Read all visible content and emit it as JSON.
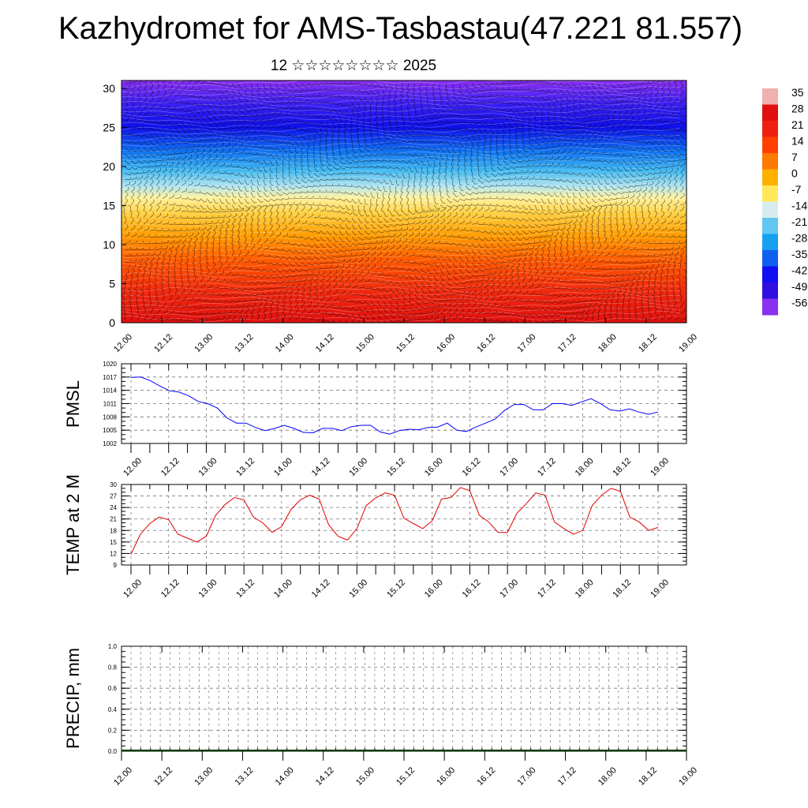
{
  "title": "Kazhydromet for AMS-Tasbastau(47.221 81.557)",
  "subtitle": "12 ☆☆☆☆☆☆☆☆ 2025",
  "chart_data": [
    {
      "type": "heatmap",
      "name": "temperature cross-section with wind barbs",
      "x_tick_labels": [
        "12.00",
        "12.12",
        "13.00",
        "13.12",
        "14.00",
        "14.12",
        "15.00",
        "15.12",
        "16.00",
        "16.12",
        "17.00",
        "17.12",
        "18.00",
        "18.12",
        "19.00"
      ],
      "y_ticks": [
        0,
        5,
        10,
        15,
        20,
        25,
        30
      ],
      "ylim": [
        0,
        31
      ],
      "colorbar_labels": [
        "35",
        "28",
        "21",
        "14",
        "7",
        "0",
        "-7",
        "-14",
        "-21",
        "-28",
        "-35",
        "-42",
        "-49",
        "-56"
      ],
      "colorbar_colors": [
        "#f0b0b0",
        "#e01010",
        "#f02010",
        "#ff4000",
        "#ff7a00",
        "#ffb000",
        "#ffe85a",
        "#d8ecf0",
        "#60c8f0",
        "#18a0f0",
        "#1060f0",
        "#1010f0",
        "#3010e0",
        "#8a30f0"
      ],
      "profile": [
        {
          "level": 0,
          "color": "#e01010"
        },
        {
          "level": 4,
          "color": "#f02a10"
        },
        {
          "level": 8,
          "color": "#ff5a00"
        },
        {
          "level": 11,
          "color": "#ff9a00"
        },
        {
          "level": 14,
          "color": "#ffd040"
        },
        {
          "level": 16,
          "color": "#fff2a0"
        },
        {
          "level": 17.5,
          "color": "#b0e4f0"
        },
        {
          "level": 19.5,
          "color": "#40b8f0"
        },
        {
          "level": 22,
          "color": "#1070f0"
        },
        {
          "level": 25,
          "color": "#1010e8"
        },
        {
          "level": 28,
          "color": "#3a20f0"
        },
        {
          "level": 31,
          "color": "#8a30f0"
        }
      ]
    },
    {
      "type": "line",
      "ylabel": "PMSL",
      "yticks": [
        1002,
        1005,
        1008,
        1011,
        1014,
        1017,
        1020
      ],
      "ylim": [
        1002,
        1020
      ],
      "x_tick_labels": [
        "12.00",
        "12.12",
        "13.00",
        "13.12",
        "14.00",
        "14.12",
        "15.00",
        "15.12",
        "16.00",
        "16.12",
        "17.00",
        "17.12",
        "18.00",
        "18.12",
        "19.00"
      ],
      "color": "#0000ff",
      "values": [
        1016.9,
        1017.0,
        1016.2,
        1015.0,
        1013.9,
        1013.6,
        1012.8,
        1011.5,
        1011.0,
        1010.0,
        1007.8,
        1006.6,
        1006.6,
        1005.6,
        1004.9,
        1005.4,
        1006.1,
        1005.4,
        1004.5,
        1004.4,
        1005.4,
        1005.4,
        1004.9,
        1005.8,
        1006.1,
        1006.1,
        1004.6,
        1004.1,
        1004.9,
        1005.2,
        1005.1,
        1005.6,
        1005.7,
        1006.6,
        1005.0,
        1004.7,
        1005.7,
        1006.6,
        1007.5,
        1009.5,
        1010.8,
        1010.8,
        1009.6,
        1009.6,
        1011.0,
        1011.0,
        1010.6,
        1011.4,
        1012.1,
        1011.0,
        1009.6,
        1009.3,
        1009.8,
        1009.1,
        1008.6,
        1009.1
      ]
    },
    {
      "type": "line",
      "ylabel": "TEMP at 2 M",
      "yticks": [
        9,
        12,
        15,
        18,
        21,
        24,
        27,
        30
      ],
      "ylim": [
        9,
        30
      ],
      "x_tick_labels": [
        "12.00",
        "12.12",
        "13.00",
        "13.12",
        "14.00",
        "14.12",
        "15.00",
        "15.12",
        "16.00",
        "16.12",
        "17.00",
        "17.12",
        "18.00",
        "18.12",
        "19.00"
      ],
      "color": "#e00000",
      "values": [
        11.8,
        17.0,
        19.8,
        21.5,
        20.8,
        17.0,
        16.0,
        15.0,
        16.5,
        22.0,
        24.8,
        26.6,
        26.0,
        21.5,
        20.0,
        17.5,
        19.0,
        23.5,
        26.0,
        27.2,
        26.2,
        19.5,
        16.5,
        15.5,
        18.5,
        24.5,
        26.5,
        27.8,
        27.2,
        21.2,
        19.8,
        18.5,
        20.5,
        26.2,
        26.6,
        29.2,
        28.4,
        22.0,
        20.2,
        17.5,
        17.5,
        22.5,
        25.0,
        27.8,
        27.2,
        20.2,
        18.5,
        17.0,
        18.0,
        24.5,
        27.2,
        29.0,
        28.2,
        21.5,
        20.2,
        18.0,
        18.8
      ]
    },
    {
      "type": "bar",
      "ylabel": "PRECIP, mm",
      "yticks": [
        0.0,
        0.2,
        0.4,
        0.6,
        0.8,
        1.0
      ],
      "ylim": [
        0,
        1
      ],
      "x_tick_labels": [
        "12.00",
        "12.12",
        "13.00",
        "13.12",
        "14.00",
        "14.12",
        "15.00",
        "15.12",
        "16.00",
        "16.12",
        "17.00",
        "17.12",
        "18.00",
        "18.12",
        "19.00"
      ],
      "values": []
    }
  ]
}
